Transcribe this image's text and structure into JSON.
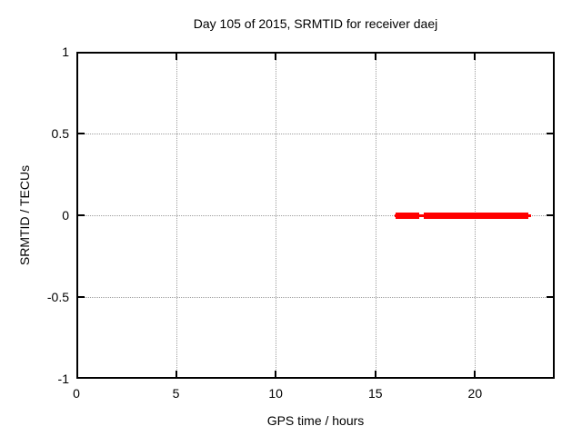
{
  "chart_data": {
    "type": "line",
    "title": "Day 105 of 2015, SRMTID for receiver daej",
    "xlabel": "GPS time / hours",
    "ylabel": "SRMTID / TECUs",
    "xlim": [
      0,
      24
    ],
    "ylim": [
      -1,
      1
    ],
    "xticks": [
      0,
      5,
      10,
      15,
      20
    ],
    "yticks": [
      1,
      0.5,
      0,
      -0.5,
      -1
    ],
    "grid": true,
    "legend": "none",
    "series": [
      {
        "name": "SRMTID",
        "color": "#ff0000",
        "y": 0,
        "thick_segments": [
          [
            16.0,
            17.2
          ],
          [
            17.45,
            22.67
          ]
        ],
        "thin_extent": [
          15.95,
          22.8
        ]
      }
    ]
  }
}
